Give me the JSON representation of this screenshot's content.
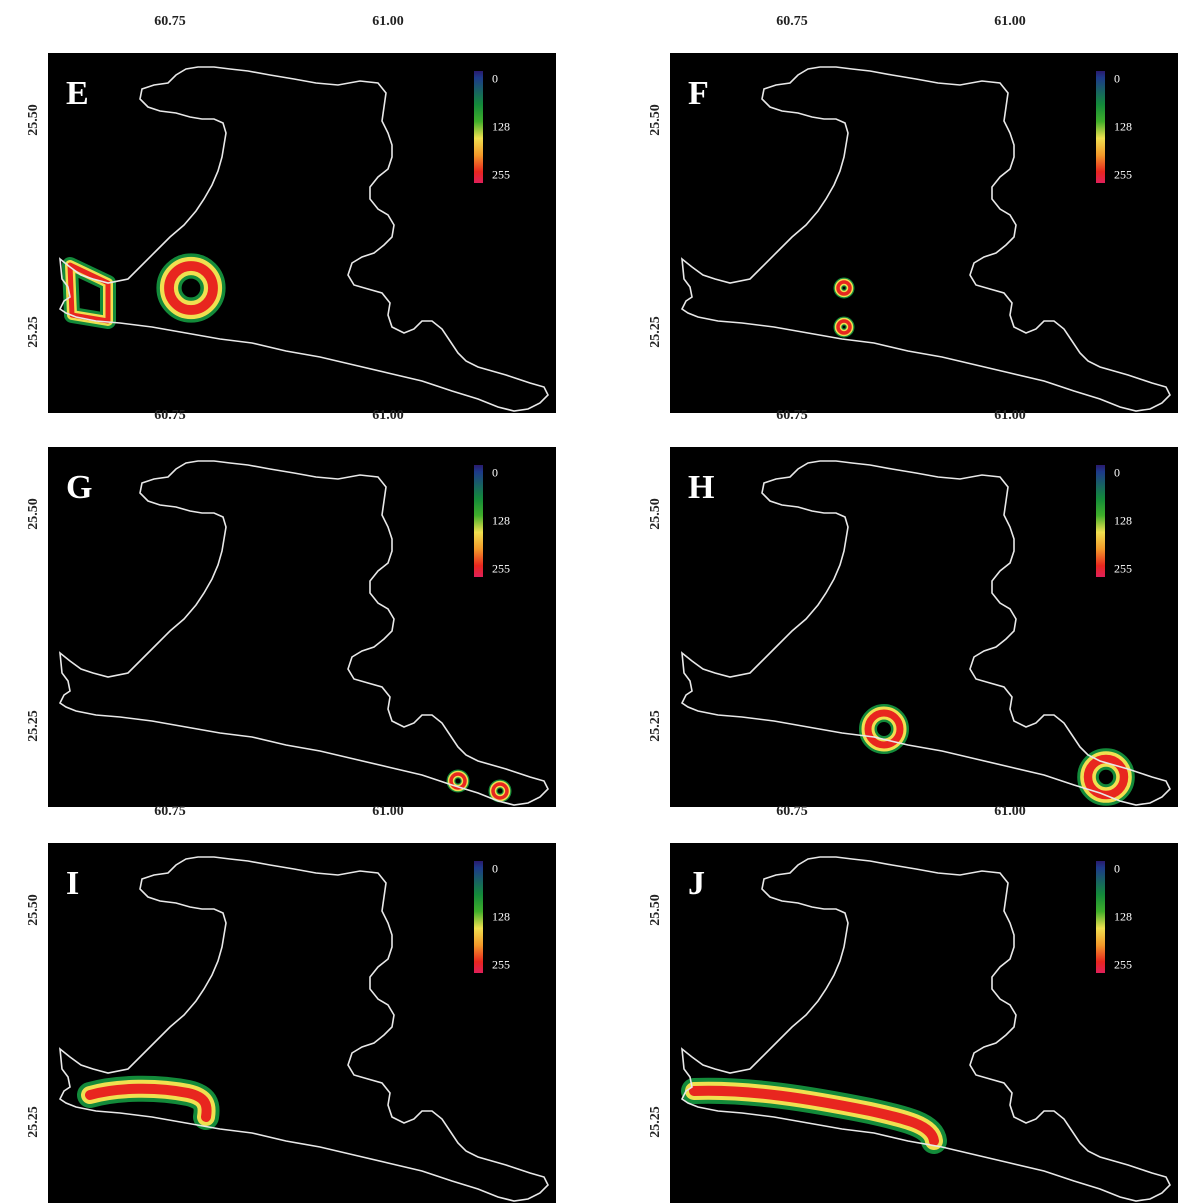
{
  "panels": [
    {
      "letter": "E",
      "lon_ticks": [
        "60.75",
        "61.00"
      ],
      "lat_ticks": [
        "25.50",
        "25.25"
      ],
      "colorbar_labels": [
        "0",
        "128",
        "255"
      ]
    },
    {
      "letter": "F",
      "lon_ticks": [
        "60.75",
        "61.00"
      ],
      "lat_ticks": [
        "25.50",
        "25.25"
      ],
      "colorbar_labels": [
        "0",
        "128",
        "255"
      ]
    },
    {
      "letter": "G",
      "lon_ticks": [
        "60.75",
        "61.00"
      ],
      "lat_ticks": [
        "25.50",
        "25.25"
      ],
      "colorbar_labels": [
        "0",
        "128",
        "255"
      ]
    },
    {
      "letter": "H",
      "lon_ticks": [
        "60.75",
        "61.00"
      ],
      "lat_ticks": [
        "25.50",
        "25.25"
      ],
      "colorbar_labels": [
        "0",
        "128",
        "255"
      ]
    },
    {
      "letter": "I",
      "lon_ticks": [
        "60.75",
        "61.00"
      ],
      "lat_ticks": [
        "25.50",
        "25.25"
      ],
      "colorbar_labels": [
        "0",
        "128",
        "255"
      ]
    },
    {
      "letter": "J",
      "lon_ticks": [
        "60.75",
        "61.00"
      ],
      "lat_ticks": [
        "25.50",
        "25.25"
      ],
      "colorbar_labels": [
        "0",
        "128",
        "255"
      ]
    }
  ],
  "colors": {
    "background": "#000000",
    "coastline": "#e8e8e8",
    "heat_low": "#138a3a",
    "heat_mid": "#f0e050",
    "heat_high": "#e8261f"
  }
}
